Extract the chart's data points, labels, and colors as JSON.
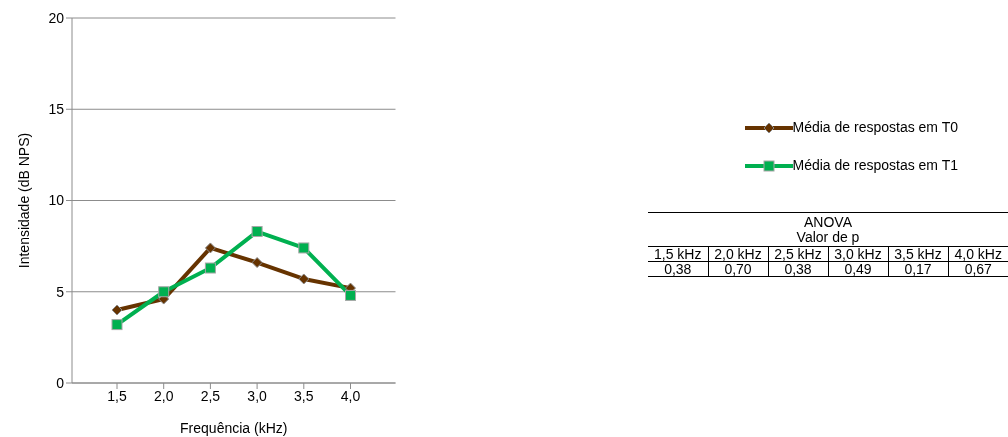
{
  "chart_data": {
    "type": "line",
    "xlabel": "Frequência (kHz)",
    "ylabel": "Intensidade (dB NPS)",
    "categories": [
      "1,5",
      "2,0",
      "2,5",
      "3,0",
      "3,5",
      "4,0"
    ],
    "series": [
      {
        "name": "Média de respostas em T0",
        "color": "#663300",
        "marker": "diamond",
        "values": [
          4.0,
          4.6,
          7.4,
          6.6,
          5.7,
          5.2
        ]
      },
      {
        "name": "Média de respostas em T1",
        "color": "#00b050",
        "marker": "square",
        "values": [
          3.2,
          5.0,
          6.3,
          8.3,
          7.4,
          4.8
        ]
      }
    ],
    "ylim": [
      0,
      20
    ],
    "yticks": [
      0,
      5,
      10,
      15,
      20
    ],
    "grid": "y",
    "legend": "right",
    "line_style": "solid",
    "annotations": [
      "ANOVA",
      "Valor de p",
      "1,5 kHz",
      "2,0 kHz",
      "2,5 kHz",
      "3,0 kHz",
      "3,5 kHz",
      "4,0 kHz",
      "0,38",
      "0,70",
      "0,38",
      "0,49",
      "0,17",
      "0,67"
    ]
  }
}
